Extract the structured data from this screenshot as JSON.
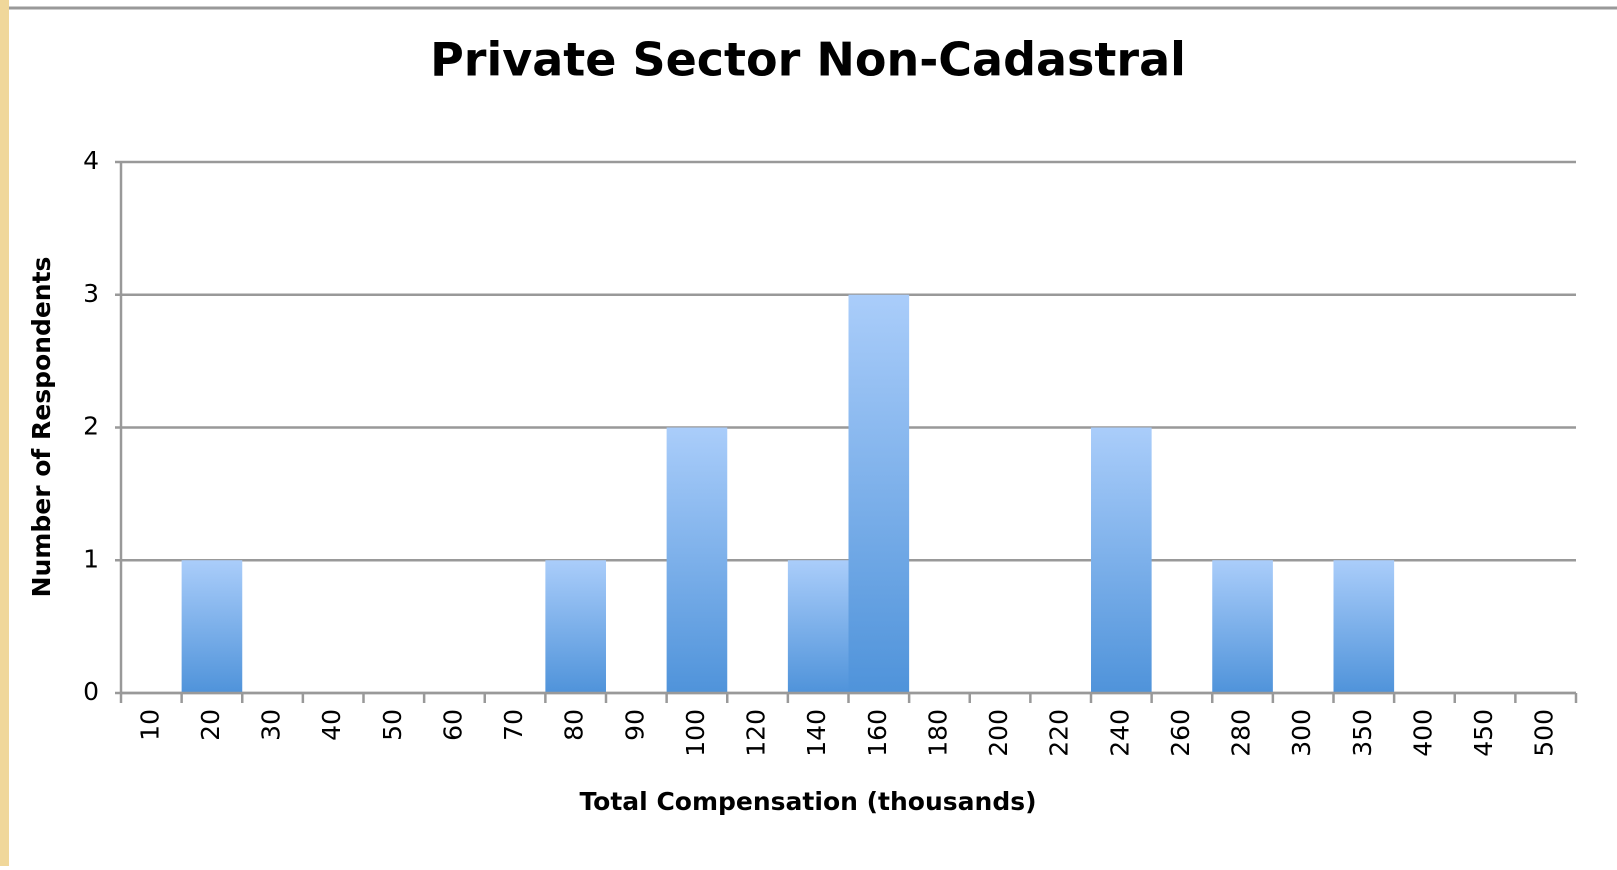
{
  "chart_data": {
    "type": "bar",
    "title": "Private Sector Non-Cadastral",
    "x_label": "Total Compensation (thousands)",
    "y_label": "Number of Respondents",
    "categories": [
      "10",
      "20",
      "30",
      "40",
      "50",
      "60",
      "70",
      "80",
      "90",
      "100",
      "120",
      "140",
      "160",
      "180",
      "200",
      "220",
      "240",
      "260",
      "280",
      "300",
      "350",
      "400",
      "450",
      "500"
    ],
    "values": [
      0,
      1,
      0,
      0,
      0,
      0,
      0,
      1,
      0,
      2,
      0,
      1,
      3,
      0,
      0,
      0,
      2,
      0,
      1,
      0,
      1,
      0,
      0,
      0
    ],
    "color": "#4f93da",
    "ylim": [
      0,
      4
    ],
    "yticks": [
      0,
      1,
      2,
      3,
      4
    ],
    "grid": true
  }
}
